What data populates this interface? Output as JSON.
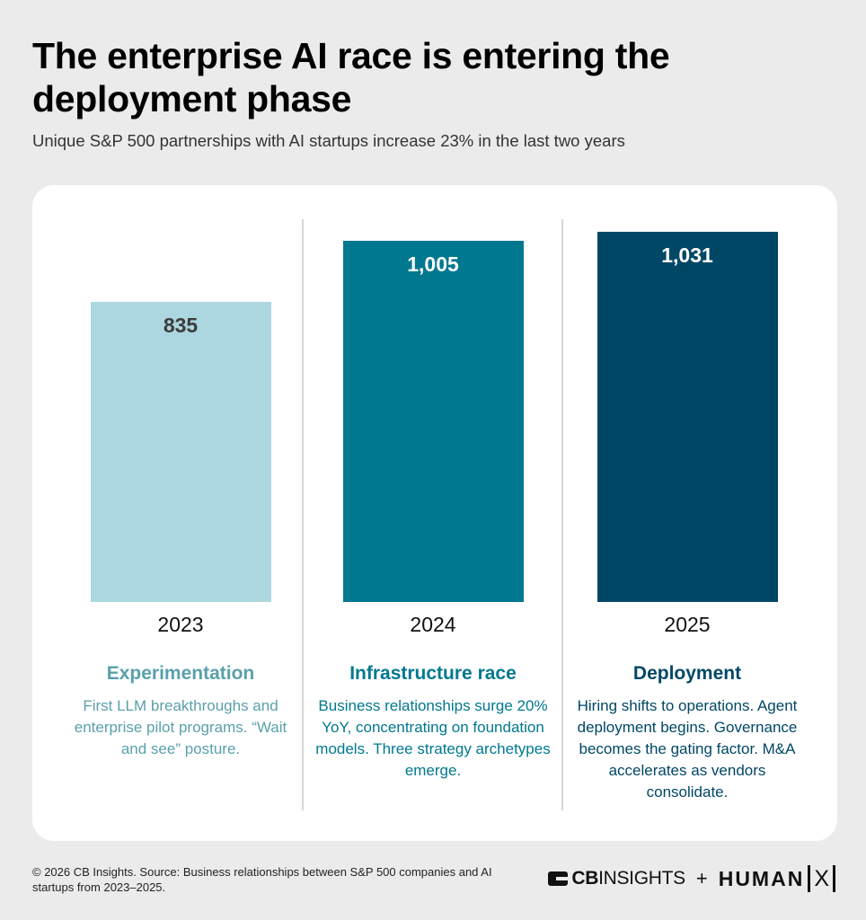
{
  "header": {
    "title": "The enterprise AI race is entering the deployment phase",
    "subtitle": "Unique S&P 500 partnerships with AI startups increase 23% in the last two years"
  },
  "chart_data": {
    "type": "bar",
    "categories": [
      "2023",
      "2024",
      "2025"
    ],
    "values": [
      835,
      1005,
      1031
    ],
    "value_labels": [
      "835",
      "1,005",
      "1,031"
    ],
    "bar_colors": [
      "#acd7e0",
      "#007890",
      "#004766"
    ],
    "value_label_colors": [
      "#3c3c3c",
      "#ffffff",
      "#ffffff"
    ],
    "ylim": [
      0,
      1080
    ],
    "grid": false,
    "phases": [
      {
        "title": "Experimentation",
        "description": "First LLM breakthroughs and enterprise pilot programs. “Wait and see” posture.",
        "color": "#5aa0ab"
      },
      {
        "title": "Infrastructure race",
        "description": "Business relationships surge 20% YoY, concentrating on foundation models. Three strategy archetypes emerge.",
        "color": "#007890"
      },
      {
        "title": "Deployment",
        "description": "Hiring shifts to operations. Agent deployment begins. Governance becomes the gating factor. M&A accelerates as vendors consolidate.",
        "color": "#004766"
      }
    ]
  },
  "footer": {
    "source": "© 2026 CB Insights. Source: Business relationships between S&P 500 companies and AI startups from 2023–2025.",
    "logo_cb_bold": "CB",
    "logo_cb_rest": "INSIGHTS",
    "plus": "+",
    "logo_hx": "HUMAN",
    "logo_hx_x": "X"
  }
}
